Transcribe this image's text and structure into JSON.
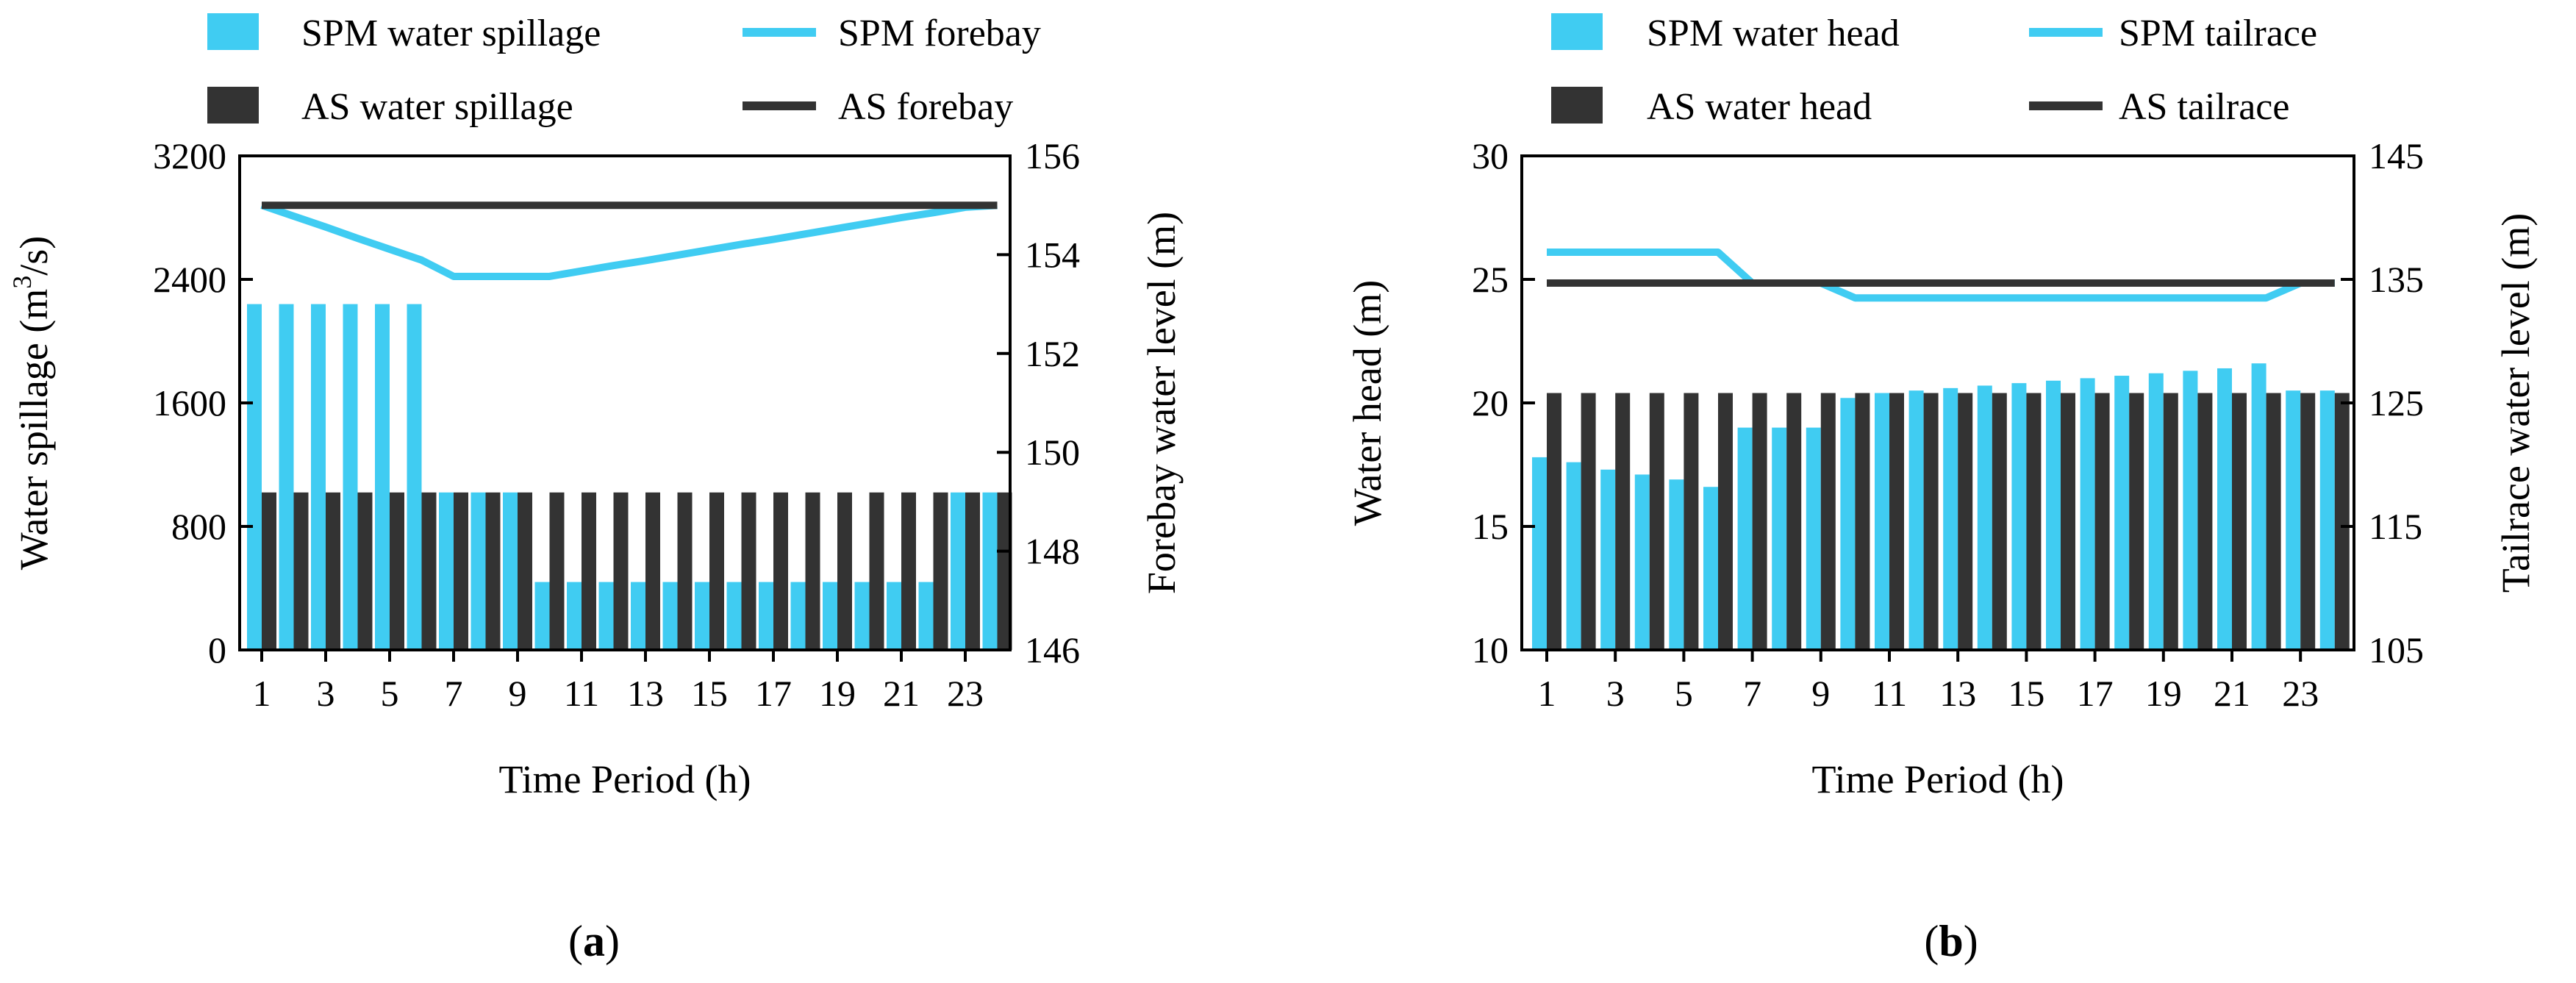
{
  "colors": {
    "spm": "#40CCF2",
    "as": "#333333",
    "axis": "#000000"
  },
  "panels": [
    {
      "label_open": "(",
      "label_letter": "a",
      "label_close": ")"
    },
    {
      "label_open": "(",
      "label_letter": "b",
      "label_close": ")"
    }
  ],
  "chart_data": [
    {
      "type": "bar+line",
      "id": "a",
      "xlabel": "Time Period (h)",
      "ylabel_left_prefix": "Water spillage (m",
      "ylabel_left_sup": "3",
      "ylabel_left_suffix": "/s)",
      "ylabel_right": "Forebay water level (m)",
      "x": [
        1,
        2,
        3,
        4,
        5,
        6,
        7,
        8,
        9,
        10,
        11,
        12,
        13,
        14,
        15,
        16,
        17,
        18,
        19,
        20,
        21,
        22,
        23,
        24
      ],
      "x_tick_labels": [
        "1",
        "3",
        "5",
        "7",
        "9",
        "11",
        "13",
        "15",
        "17",
        "19",
        "21",
        "23"
      ],
      "x_tick_values": [
        1,
        3,
        5,
        7,
        9,
        11,
        13,
        15,
        17,
        19,
        21,
        23
      ],
      "ylim_left": [
        0,
        3200
      ],
      "yticks_left": [
        0,
        800,
        1600,
        2400,
        3200
      ],
      "ylim_right": [
        146,
        156
      ],
      "yticks_right": [
        146,
        148,
        150,
        152,
        154,
        156
      ],
      "bar_series": [
        {
          "name": "SPM water spillage",
          "color": "#40CCF2",
          "values": [
            2240,
            2240,
            2240,
            2240,
            2240,
            2240,
            1020,
            1020,
            1020,
            440,
            440,
            440,
            440,
            440,
            440,
            440,
            440,
            440,
            440,
            440,
            440,
            440,
            1020,
            1020
          ]
        },
        {
          "name": "AS water spillage",
          "color": "#333333",
          "values": [
            1020,
            1020,
            1020,
            1020,
            1020,
            1020,
            1020,
            1020,
            1020,
            1020,
            1020,
            1020,
            1020,
            1020,
            1020,
            1020,
            1020,
            1020,
            1020,
            1020,
            1020,
            1020,
            1020,
            1020
          ]
        }
      ],
      "line_series": [
        {
          "name": "SPM forebay",
          "color": "#40CCF2",
          "values": [
            155,
            154.78,
            154.56,
            154.33,
            154.11,
            153.89,
            153.56,
            153.56,
            153.56,
            153.56,
            153.67,
            153.78,
            153.88,
            153.99,
            154.1,
            154.21,
            154.31,
            154.42,
            154.53,
            154.64,
            154.75,
            154.85,
            154.96,
            155
          ]
        },
        {
          "name": "AS forebay",
          "color": "#333333",
          "values": [
            155,
            155,
            155,
            155,
            155,
            155,
            155,
            155,
            155,
            155,
            155,
            155,
            155,
            155,
            155,
            155,
            155,
            155,
            155,
            155,
            155,
            155,
            155,
            155
          ]
        }
      ],
      "legend": [
        "SPM water spillage",
        "SPM forebay",
        "AS water spillage",
        "AS forebay"
      ]
    },
    {
      "type": "bar+line",
      "id": "b",
      "xlabel": "Time Period (h)",
      "ylabel_left": "Water head (m)",
      "ylabel_right": "Tailrace water level (m)",
      "x": [
        1,
        2,
        3,
        4,
        5,
        6,
        7,
        8,
        9,
        10,
        11,
        12,
        13,
        14,
        15,
        16,
        17,
        18,
        19,
        20,
        21,
        22,
        23,
        24
      ],
      "x_tick_labels": [
        "1",
        "3",
        "5",
        "7",
        "9",
        "11",
        "13",
        "15",
        "17",
        "19",
        "21",
        "23"
      ],
      "x_tick_values": [
        1,
        3,
        5,
        7,
        9,
        11,
        13,
        15,
        17,
        19,
        21,
        23
      ],
      "ylim_left": [
        10,
        30
      ],
      "yticks_left": [
        10,
        15,
        20,
        25,
        30
      ],
      "ylim_right": [
        105,
        145
      ],
      "yticks_right": [
        105,
        115,
        125,
        135,
        145
      ],
      "bar_series": [
        {
          "name": "SPM water head",
          "color": "#40CCF2",
          "values": [
            17.8,
            17.6,
            17.3,
            17.1,
            16.9,
            16.6,
            19.0,
            19.0,
            19.0,
            20.2,
            20.4,
            20.5,
            20.6,
            20.7,
            20.8,
            20.9,
            21.0,
            21.1,
            21.2,
            21.3,
            21.4,
            21.6,
            20.5,
            20.5
          ]
        },
        {
          "name": "AS water head",
          "color": "#333333",
          "values": [
            20.4,
            20.4,
            20.4,
            20.4,
            20.4,
            20.4,
            20.4,
            20.4,
            20.4,
            20.4,
            20.4,
            20.4,
            20.4,
            20.4,
            20.4,
            20.4,
            20.4,
            20.4,
            20.4,
            20.4,
            20.4,
            20.4,
            20.4,
            20.4
          ]
        }
      ],
      "line_series": [
        {
          "name": "SPM tailrace",
          "color": "#40CCF2",
          "values": [
            137.2,
            137.2,
            137.2,
            137.2,
            137.2,
            137.2,
            134.7,
            134.7,
            134.7,
            133.5,
            133.5,
            133.5,
            133.5,
            133.5,
            133.5,
            133.5,
            133.5,
            133.5,
            133.5,
            133.5,
            133.5,
            133.5,
            134.7,
            134.7
          ]
        },
        {
          "name": "AS tailrace",
          "color": "#333333",
          "values": [
            134.7,
            134.7,
            134.7,
            134.7,
            134.7,
            134.7,
            134.7,
            134.7,
            134.7,
            134.7,
            134.7,
            134.7,
            134.7,
            134.7,
            134.7,
            134.7,
            134.7,
            134.7,
            134.7,
            134.7,
            134.7,
            134.7,
            134.7,
            134.7
          ]
        }
      ],
      "legend": [
        "SPM water head",
        "SPM tailrace",
        "AS water head",
        "AS tailrace"
      ]
    }
  ]
}
